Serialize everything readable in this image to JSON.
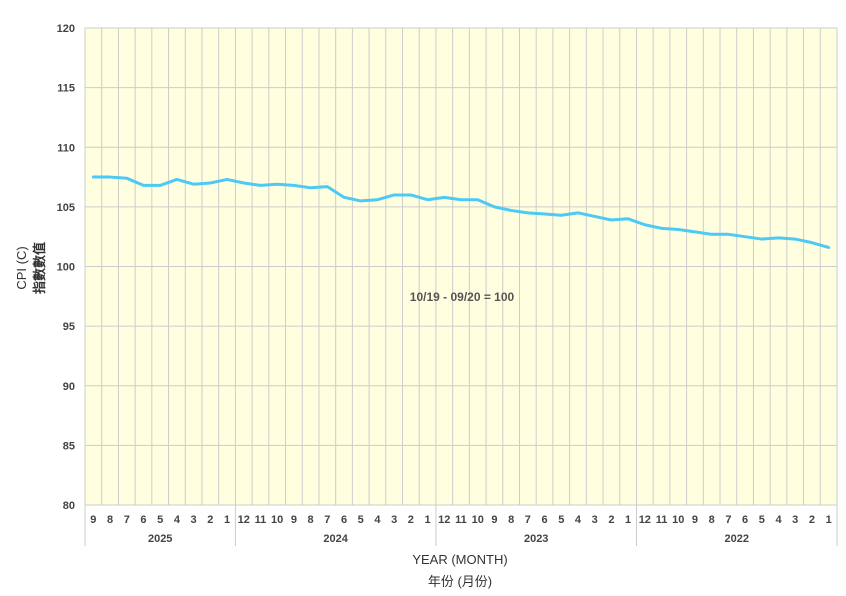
{
  "chart_data": {
    "type": "line",
    "xlabel": "YEAR (MONTH)",
    "xlabel_sub": "年份 (月份)",
    "ylabel": "CPI (C)",
    "ylabel_sub": "指數數值",
    "ylim": [
      80,
      120
    ],
    "y_ticks": [
      "120",
      "115",
      "110",
      "105",
      "100",
      "95",
      "90",
      "85",
      "80"
    ],
    "annotation": "10/19 - 09/20 = 100",
    "colors": {
      "line": "#4cc9f5",
      "plot_bg": "#ffffe0",
      "grid": "#cccccc"
    },
    "grid": true,
    "years": [
      {
        "label": "2025",
        "months": 9
      },
      {
        "label": "2024",
        "months": 12
      },
      {
        "label": "2023",
        "months": 12
      },
      {
        "label": "2022",
        "months": 12
      }
    ],
    "categories": [
      "9",
      "8",
      "7",
      "6",
      "5",
      "4",
      "3",
      "2",
      "1",
      "12",
      "11",
      "10",
      "9",
      "8",
      "7",
      "6",
      "5",
      "4",
      "3",
      "2",
      "1",
      "12",
      "11",
      "10",
      "9",
      "8",
      "7",
      "6",
      "5",
      "4",
      "3",
      "2",
      "1",
      "12",
      "11",
      "10",
      "9",
      "8",
      "7",
      "6",
      "5",
      "4",
      "3",
      "2",
      "1"
    ],
    "series": [
      {
        "values": [
          107.5,
          107.5,
          107.4,
          106.8,
          106.8,
          107.3,
          106.9,
          107.0,
          107.3,
          107.0,
          106.8,
          106.9,
          106.8,
          106.6,
          106.7,
          105.8,
          105.5,
          105.6,
          106.0,
          106.0,
          105.6,
          105.8,
          105.6,
          105.6,
          105.0,
          104.7,
          104.5,
          104.4,
          104.3,
          104.5,
          104.2,
          103.9,
          104.0,
          103.5,
          103.2,
          103.1,
          102.9,
          102.7,
          102.7,
          102.5,
          102.3,
          102.4,
          102.3,
          102.0,
          101.6
        ]
      }
    ]
  }
}
